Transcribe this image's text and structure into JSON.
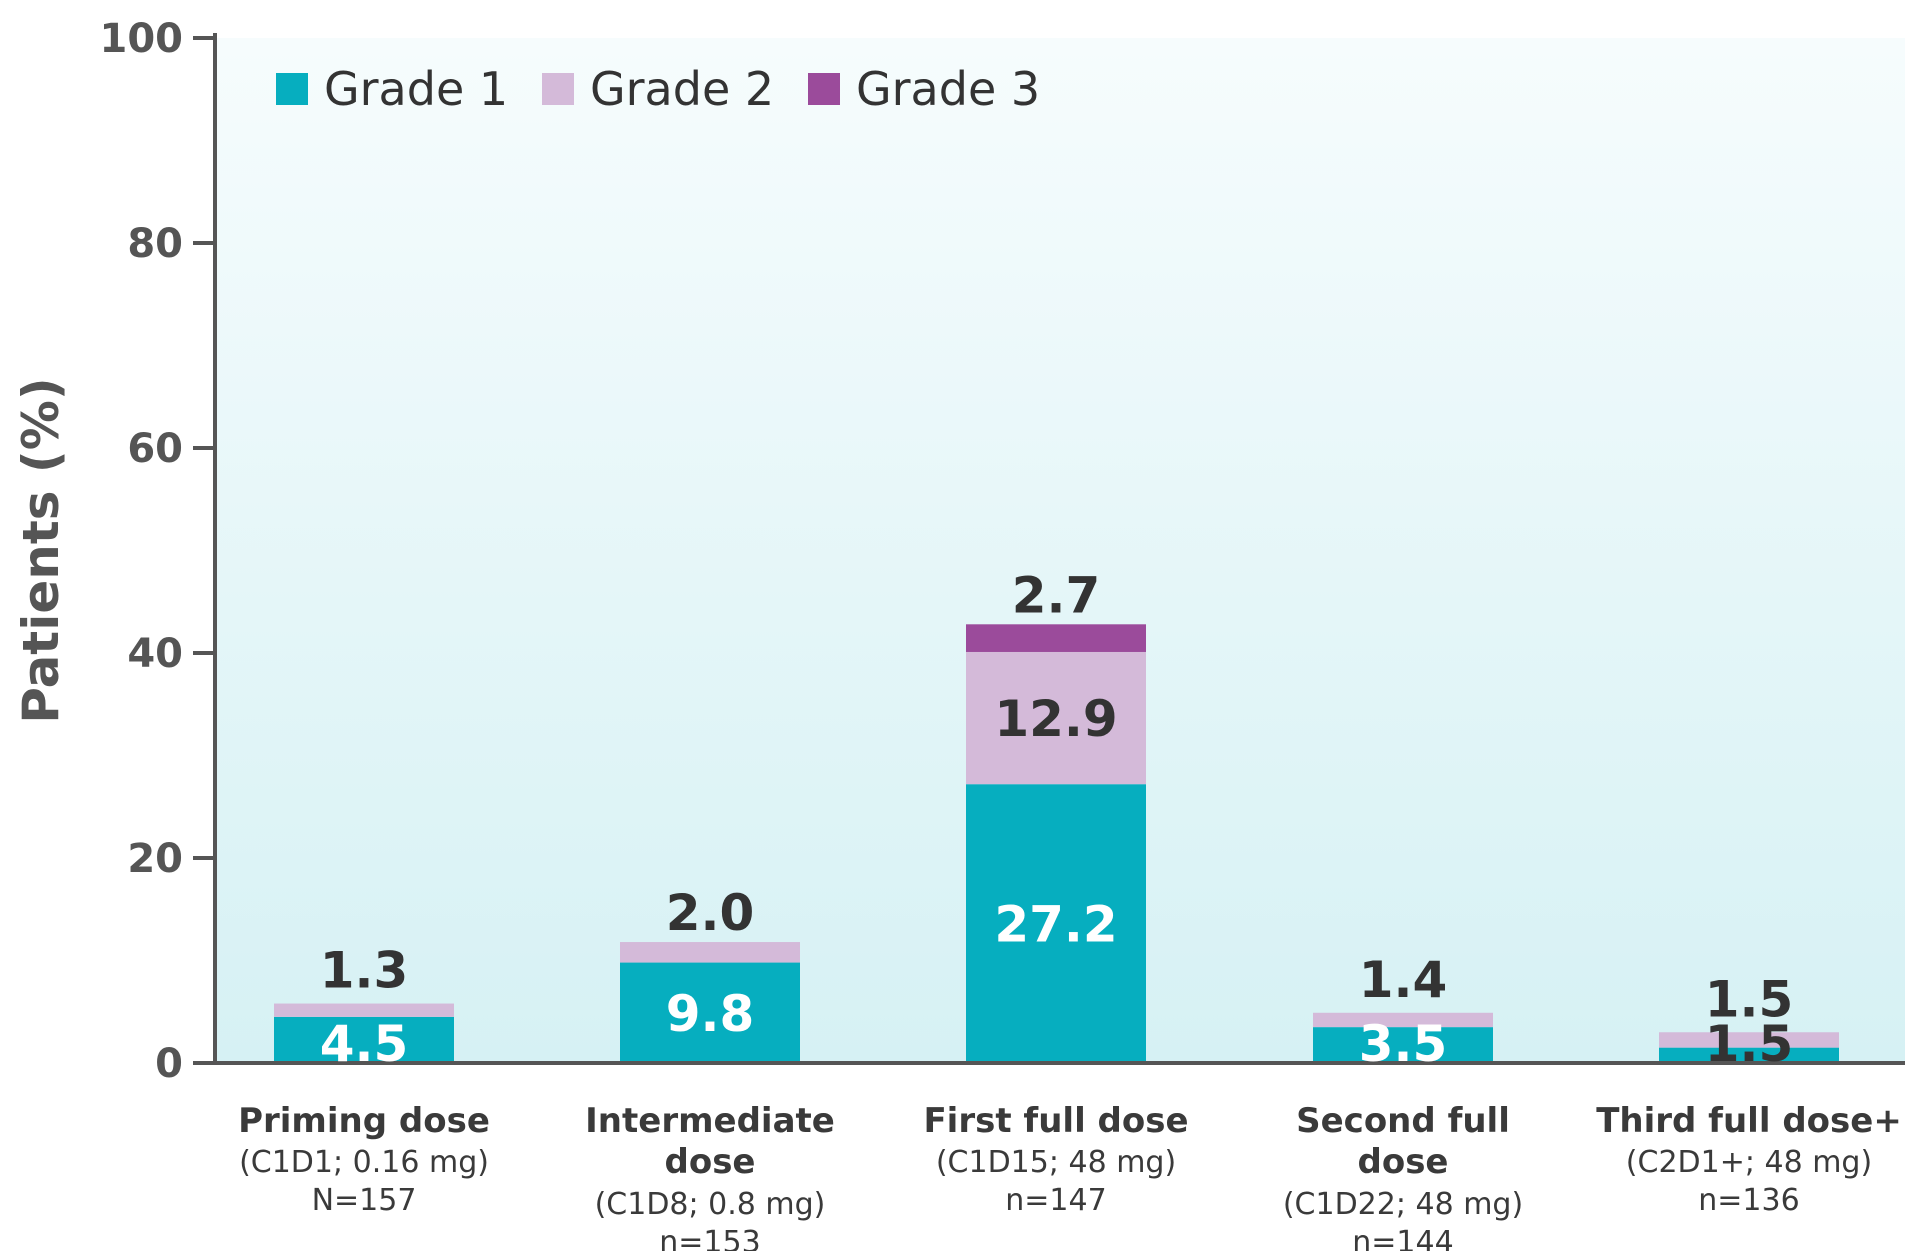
{
  "chart_data": {
    "type": "bar",
    "stacked": true,
    "ylabel": "Patients (%)",
    "ylim": [
      0,
      100
    ],
    "yticks": [
      0,
      20,
      40,
      60,
      80,
      100
    ],
    "grid": false,
    "legend_position": "top-left",
    "categories": [
      {
        "lines": [
          "Priming dose"
        ],
        "details": [
          "(C1D1; 0.16 mg)",
          "N=157"
        ]
      },
      {
        "lines": [
          "Intermediate",
          "dose"
        ],
        "details": [
          "(C1D8; 0.8 mg)",
          "n=153"
        ]
      },
      {
        "lines": [
          "First full dose"
        ],
        "details": [
          "(C1D15; 48 mg)",
          "n=147"
        ]
      },
      {
        "lines": [
          "Second full",
          "dose"
        ],
        "details": [
          "(C1D22; 48 mg)",
          "n=144"
        ]
      },
      {
        "lines": [
          "Third full dose+"
        ],
        "details": [
          "(C2D1+; 48 mg)",
          "n=136"
        ]
      }
    ],
    "series": [
      {
        "name": "Grade 1",
        "color": "#06AEBF",
        "values": [
          4.5,
          9.8,
          27.2,
          3.5,
          1.5
        ],
        "labels": [
          "4.5",
          "9.8",
          "27.2",
          "3.5",
          "1.5"
        ]
      },
      {
        "name": "Grade 2",
        "color": "#D4BAD9",
        "values": [
          1.3,
          2.0,
          12.9,
          1.4,
          1.5
        ],
        "labels": [
          "1.3",
          "2.0",
          "12.9",
          "1.4",
          "1.5"
        ]
      },
      {
        "name": "Grade 3",
        "color": "#9B4B9B",
        "values": [
          0,
          0,
          2.7,
          0,
          0
        ],
        "labels": [
          "",
          "",
          "2.7",
          "",
          ""
        ]
      }
    ]
  }
}
